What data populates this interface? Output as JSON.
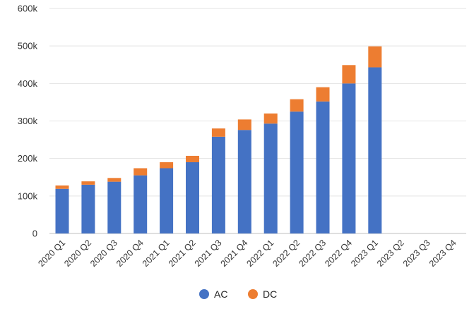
{
  "chart_data": {
    "type": "bar",
    "stacked": true,
    "categories": [
      "2020 Q1",
      "2020 Q2",
      "2020 Q3",
      "2020 Q4",
      "2021 Q1",
      "2021 Q2",
      "2021 Q3",
      "2021 Q4",
      "2022 Q1",
      "2022 Q2",
      "2022 Q3",
      "2022 Q4",
      "2023 Q1",
      "2023 Q2",
      "2023 Q3",
      "2023 Q4"
    ],
    "series": [
      {
        "name": "AC",
        "color": "#4472C4",
        "values": [
          119000,
          130000,
          138000,
          155000,
          174000,
          190000,
          258000,
          276000,
          293000,
          325000,
          352000,
          400000,
          443000,
          null,
          null,
          null
        ]
      },
      {
        "name": "DC",
        "color": "#ED7D31",
        "values": [
          9000,
          9000,
          10000,
          19000,
          16000,
          17000,
          22000,
          28000,
          27000,
          33000,
          38000,
          49000,
          56000,
          null,
          null,
          null
        ]
      }
    ],
    "ylim": [
      0,
      600000
    ],
    "yticks": [
      0,
      100000,
      200000,
      300000,
      400000,
      500000,
      600000
    ],
    "ytick_labels": [
      "0",
      "100k",
      "200k",
      "300k",
      "400k",
      "500k",
      "600k"
    ],
    "grid": "horizontal",
    "legend": "bottom-center",
    "title": "",
    "xlabel": "",
    "ylabel": ""
  }
}
